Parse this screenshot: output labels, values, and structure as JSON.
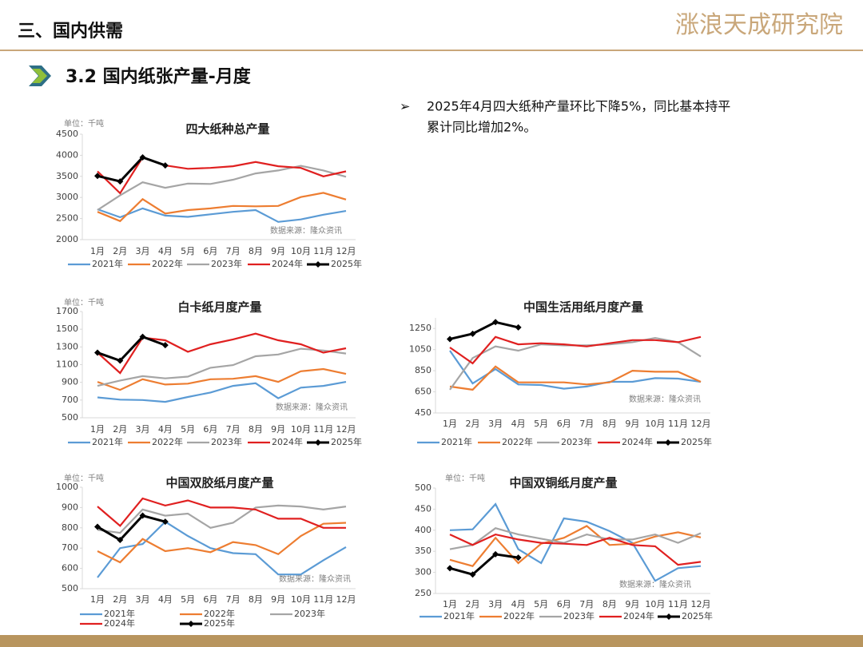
{
  "header": {
    "title": "三、国内供需",
    "logo": "涨浪天成研究院"
  },
  "section": {
    "title": "3.2 国内纸张产量-月度"
  },
  "bullet": {
    "lines": [
      "2025年4月四大纸种产量环比下降5%，同比基本持平",
      "累计同比增加2%。"
    ]
  },
  "chart_data": [
    {
      "type": "line",
      "title": "四大纸种总产量",
      "unit": "单位：千吨",
      "source": "数据来源：隆众资讯",
      "categories": [
        "1月",
        "2月",
        "3月",
        "4月",
        "5月",
        "6月",
        "7月",
        "8月",
        "9月",
        "10月",
        "11月",
        "12月"
      ],
      "ylim": [
        2000,
        4500
      ],
      "yticks": [
        2000,
        2500,
        3000,
        3500,
        4000,
        4500
      ],
      "grid": false,
      "series": [
        {
          "name": "2021年",
          "color": "#5b9bd5",
          "values": [
            2720,
            2530,
            2740,
            2570,
            2540,
            2600,
            2660,
            2700,
            2420,
            2480,
            2590,
            2680
          ]
        },
        {
          "name": "2022年",
          "color": "#ed7d31",
          "values": [
            2660,
            2440,
            2960,
            2620,
            2700,
            2740,
            2800,
            2790,
            2800,
            3010,
            3110,
            2950
          ]
        },
        {
          "name": "2023年",
          "color": "#a5a5a5",
          "values": [
            2700,
            3050,
            3360,
            3230,
            3330,
            3320,
            3420,
            3570,
            3640,
            3750,
            3640,
            3490
          ]
        },
        {
          "name": "2024年",
          "color": "#e02020",
          "values": [
            3620,
            3100,
            3950,
            3760,
            3680,
            3700,
            3740,
            3840,
            3740,
            3700,
            3500,
            3620
          ]
        },
        {
          "name": "2025年",
          "color": "#000000",
          "marker": "diamond",
          "values": [
            3510,
            3380,
            3950,
            3760,
            null,
            null,
            null,
            null,
            null,
            null,
            null,
            null
          ]
        }
      ]
    },
    {
      "type": "line",
      "title": "白卡纸月度产量",
      "unit": "单位：千吨",
      "source": "数据来源：隆众资讯",
      "categories": [
        "1月",
        "2月",
        "3月",
        "4月",
        "5月",
        "6月",
        "7月",
        "8月",
        "9月",
        "10月",
        "11月",
        "12月"
      ],
      "ylim": [
        500,
        1700
      ],
      "yticks": [
        500,
        700,
        900,
        1100,
        1300,
        1500,
        1700
      ],
      "grid": false,
      "series": [
        {
          "name": "2021年",
          "color": "#5b9bd5",
          "values": [
            730,
            705,
            700,
            680,
            735,
            785,
            860,
            890,
            720,
            840,
            860,
            905
          ]
        },
        {
          "name": "2022年",
          "color": "#ed7d31",
          "values": [
            905,
            815,
            935,
            875,
            885,
            935,
            940,
            970,
            905,
            1025,
            1050,
            995
          ]
        },
        {
          "name": "2023年",
          "color": "#a5a5a5",
          "values": [
            860,
            920,
            970,
            945,
            965,
            1065,
            1095,
            1195,
            1215,
            1280,
            1260,
            1225
          ]
        },
        {
          "name": "2024年",
          "color": "#e02020",
          "values": [
            1235,
            1005,
            1405,
            1375,
            1245,
            1330,
            1385,
            1450,
            1375,
            1330,
            1235,
            1285
          ]
        },
        {
          "name": "2025年",
          "color": "#000000",
          "marker": "diamond",
          "values": [
            1235,
            1145,
            1415,
            1320,
            null,
            null,
            null,
            null,
            null,
            null,
            null,
            null
          ]
        }
      ]
    },
    {
      "type": "line",
      "title": "中国生活用纸月度产量",
      "source": "数据来源：隆众资讯",
      "categories": [
        "1月",
        "2月",
        "3月",
        "4月",
        "5月",
        "6月",
        "7月",
        "8月",
        "9月",
        "10月",
        "11月",
        "12月"
      ],
      "ylim": [
        450,
        1350
      ],
      "yticks": [
        450,
        650,
        850,
        1050,
        1250
      ],
      "grid": false,
      "series": [
        {
          "name": "2021年",
          "color": "#5b9bd5",
          "values": [
            1040,
            730,
            865,
            720,
            715,
            680,
            700,
            745,
            745,
            780,
            775,
            745
          ]
        },
        {
          "name": "2022年",
          "color": "#ed7d31",
          "values": [
            700,
            670,
            890,
            740,
            740,
            740,
            720,
            740,
            850,
            840,
            840,
            745
          ]
        },
        {
          "name": "2023年",
          "color": "#a5a5a5",
          "values": [
            670,
            970,
            1080,
            1040,
            1100,
            1090,
            1090,
            1100,
            1120,
            1160,
            1120,
            985
          ]
        },
        {
          "name": "2024年",
          "color": "#e02020",
          "values": [
            1070,
            920,
            1170,
            1100,
            1110,
            1100,
            1080,
            1110,
            1140,
            1140,
            1120,
            1170
          ]
        },
        {
          "name": "2025年",
          "color": "#000000",
          "marker": "diamond",
          "values": [
            1150,
            1200,
            1310,
            1260,
            null,
            null,
            null,
            null,
            null,
            null,
            null,
            null
          ]
        }
      ]
    },
    {
      "type": "line",
      "title": "中国双胶纸月度产量",
      "unit": "单位：千吨",
      "source": "数据来源：隆众资讯",
      "categories": [
        "1月",
        "2月",
        "3月",
        "4月",
        "5月",
        "6月",
        "7月",
        "8月",
        "9月",
        "10月",
        "11月",
        "12月"
      ],
      "ylim": [
        500,
        1000
      ],
      "yticks": [
        500,
        600,
        700,
        800,
        900,
        1000
      ],
      "grid": false,
      "series": [
        {
          "name": "2021年",
          "color": "#5b9bd5",
          "values": [
            555,
            700,
            720,
            830,
            760,
            700,
            675,
            670,
            570,
            570,
            640,
            705
          ]
        },
        {
          "name": "2022年",
          "color": "#ed7d31",
          "values": [
            685,
            630,
            745,
            685,
            700,
            680,
            730,
            715,
            670,
            760,
            820,
            825
          ]
        },
        {
          "name": "2023年",
          "color": "#a5a5a5",
          "values": [
            790,
            775,
            890,
            860,
            870,
            800,
            825,
            900,
            910,
            905,
            890,
            905
          ]
        },
        {
          "name": "2024年",
          "color": "#e02020",
          "values": [
            905,
            810,
            945,
            910,
            935,
            900,
            900,
            890,
            845,
            845,
            800,
            800
          ]
        },
        {
          "name": "2025年",
          "color": "#000000",
          "marker": "diamond",
          "values": [
            805,
            740,
            860,
            830,
            null,
            null,
            null,
            null,
            null,
            null,
            null,
            null
          ]
        }
      ]
    },
    {
      "type": "line",
      "title": "中国双铜纸月度产量",
      "unit": "单位：千吨",
      "source": "数据来源：隆众资讯",
      "categories": [
        "1月",
        "2月",
        "3月",
        "4月",
        "5月",
        "6月",
        "7月",
        "8月",
        "9月",
        "10月",
        "11月",
        "12月"
      ],
      "ylim": [
        250,
        500
      ],
      "yticks": [
        250,
        300,
        350,
        400,
        450,
        500
      ],
      "grid": false,
      "series": [
        {
          "name": "2021年",
          "color": "#5b9bd5",
          "values": [
            400,
            402,
            462,
            355,
            322,
            428,
            420,
            398,
            370,
            280,
            310,
            315
          ]
        },
        {
          "name": "2022年",
          "color": "#ed7d31",
          "values": [
            330,
            315,
            382,
            322,
            368,
            382,
            410,
            365,
            368,
            385,
            395,
            383
          ]
        },
        {
          "name": "2023年",
          "color": "#a5a5a5",
          "values": [
            355,
            365,
            405,
            390,
            380,
            370,
            390,
            378,
            378,
            390,
            370,
            393
          ]
        },
        {
          "name": "2024年",
          "color": "#e02020",
          "values": [
            390,
            365,
            390,
            378,
            370,
            368,
            365,
            382,
            365,
            362,
            318,
            325
          ]
        },
        {
          "name": "2025年",
          "color": "#000000",
          "marker": "diamond",
          "values": [
            310,
            295,
            343,
            335,
            null,
            null,
            null,
            null,
            null,
            null,
            null,
            null
          ]
        }
      ]
    }
  ]
}
